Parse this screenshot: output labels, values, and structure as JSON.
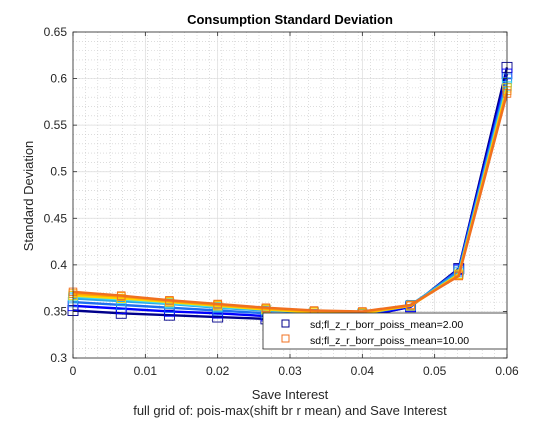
{
  "chart_data": {
    "type": "line",
    "title": "Consumption Standard Deviation",
    "xlabel": "Save Interest",
    "ylabel": "Standard Deviation",
    "caption": "full grid of: pois-max(shift br r mean) and Save Interest",
    "xlim": [
      0,
      0.06
    ],
    "ylim": [
      0.3,
      0.65
    ],
    "xticks": [
      0,
      0.01,
      0.02,
      0.03,
      0.04,
      0.05,
      0.06
    ],
    "xtick_labels": [
      "0",
      "0.01",
      "0.02",
      "0.03",
      "0.04",
      "0.05",
      "0.06"
    ],
    "yticks": [
      0.3,
      0.35,
      0.4,
      0.45,
      0.5,
      0.55,
      0.6,
      0.65
    ],
    "ytick_labels": [
      "0.3",
      "0.35",
      "0.4",
      "0.45",
      "0.5",
      "0.55",
      "0.6",
      "0.65"
    ],
    "grid": "minor dotted",
    "legend_position": "bottom-right",
    "x": [
      0,
      0.00667,
      0.01333,
      0.02,
      0.02667,
      0.03333,
      0.04,
      0.04667,
      0.05333,
      0.06
    ],
    "series": [
      {
        "name": "sd;fl_z_r_borr_poiss_mean=2.00",
        "color": "#00008b",
        "marker": "square",
        "values": [
          0.351,
          0.348,
          0.346,
          0.344,
          0.342,
          0.342,
          0.344,
          0.355,
          0.396,
          0.612
        ]
      },
      {
        "values": [
          0.356,
          0.353,
          0.35,
          0.348,
          0.345,
          0.344,
          0.345,
          0.355,
          0.395,
          0.605
        ],
        "color": "#0000ff"
      },
      {
        "values": [
          0.36,
          0.357,
          0.354,
          0.351,
          0.348,
          0.347,
          0.347,
          0.356,
          0.394,
          0.6
        ],
        "color": "#1e6ff0"
      },
      {
        "values": [
          0.364,
          0.361,
          0.358,
          0.354,
          0.351,
          0.349,
          0.348,
          0.357,
          0.392,
          0.596
        ],
        "color": "#2aa8e8"
      },
      {
        "values": [
          0.366,
          0.363,
          0.359,
          0.355,
          0.352,
          0.349,
          0.348,
          0.356,
          0.39,
          0.592
        ],
        "color": "#40e0f0"
      },
      {
        "values": [
          0.367,
          0.364,
          0.36,
          0.356,
          0.352,
          0.349,
          0.348,
          0.356,
          0.39,
          0.59
        ],
        "color": "#ffd700"
      },
      {
        "values": [
          0.369,
          0.366,
          0.361,
          0.357,
          0.353,
          0.35,
          0.349,
          0.356,
          0.389,
          0.587
        ],
        "color": "#ffa500"
      },
      {
        "name": "sd;fl_z_r_borr_poiss_mean=10.00",
        "color": "#f07020",
        "marker": "square",
        "values": [
          0.371,
          0.367,
          0.362,
          0.358,
          0.354,
          0.351,
          0.35,
          0.357,
          0.388,
          0.584
        ]
      }
    ]
  }
}
